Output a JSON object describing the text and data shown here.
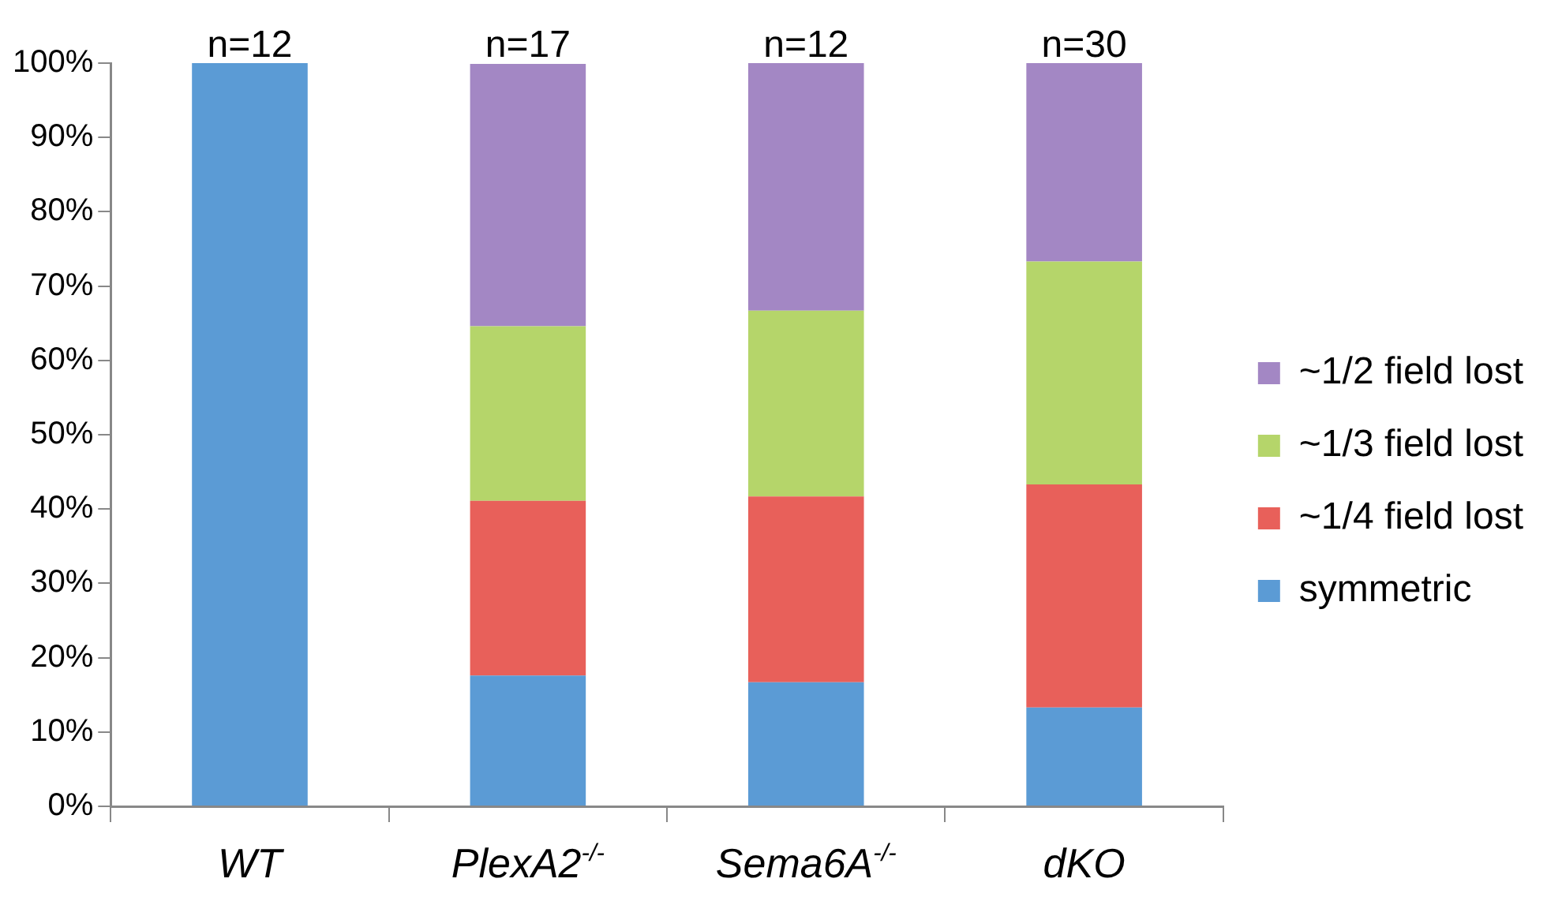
{
  "chart_data": {
    "type": "bar",
    "stacked": true,
    "categories": [
      "WT",
      "PlexA2$^{-/-}$",
      "Sema6A$^{-/-}$",
      "dKO"
    ],
    "series": [
      {
        "name": "symmetric",
        "color": "#5b9bd5",
        "values": [
          100,
          17.6,
          16.7,
          13.3
        ]
      },
      {
        "name": "~1/4 field lost",
        "color": "#e8605a",
        "values": [
          0,
          23.5,
          25,
          30
        ]
      },
      {
        "name": "~1/3 field lost",
        "color": "#b5d56a",
        "values": [
          0,
          23.5,
          25,
          30
        ]
      },
      {
        "name": "~1/2 field lost",
        "color": "#a387c4",
        "values": [
          0,
          35.3,
          33.3,
          26.7
        ]
      }
    ],
    "ylim": [
      0,
      100
    ],
    "yticks": [
      {
        "value": 0,
        "label": "0%"
      },
      {
        "value": 10,
        "label": "10%"
      },
      {
        "value": 20,
        "label": "20%"
      },
      {
        "value": 30,
        "label": "30%"
      },
      {
        "value": 40,
        "label": "40%"
      },
      {
        "value": 50,
        "label": "50%"
      },
      {
        "value": 60,
        "label": "60%"
      },
      {
        "value": 70,
        "label": "70%"
      },
      {
        "value": 80,
        "label": "80%"
      },
      {
        "value": 90,
        "label": "90%"
      },
      {
        "value": 100,
        "label": "100%"
      }
    ],
    "grid": false,
    "legend": "right",
    "annotations": [
      {
        "text": "n=12",
        "x": "WT",
        "y": 100
      },
      {
        "text": "n=17",
        "x": "PlexA2$^{-/-}$",
        "y": 100
      },
      {
        "text": "n=12",
        "x": "Sema6A$^{-/-}$",
        "y": 100
      },
      {
        "text": "n=30",
        "x": "dKO",
        "y": 100
      }
    ]
  }
}
